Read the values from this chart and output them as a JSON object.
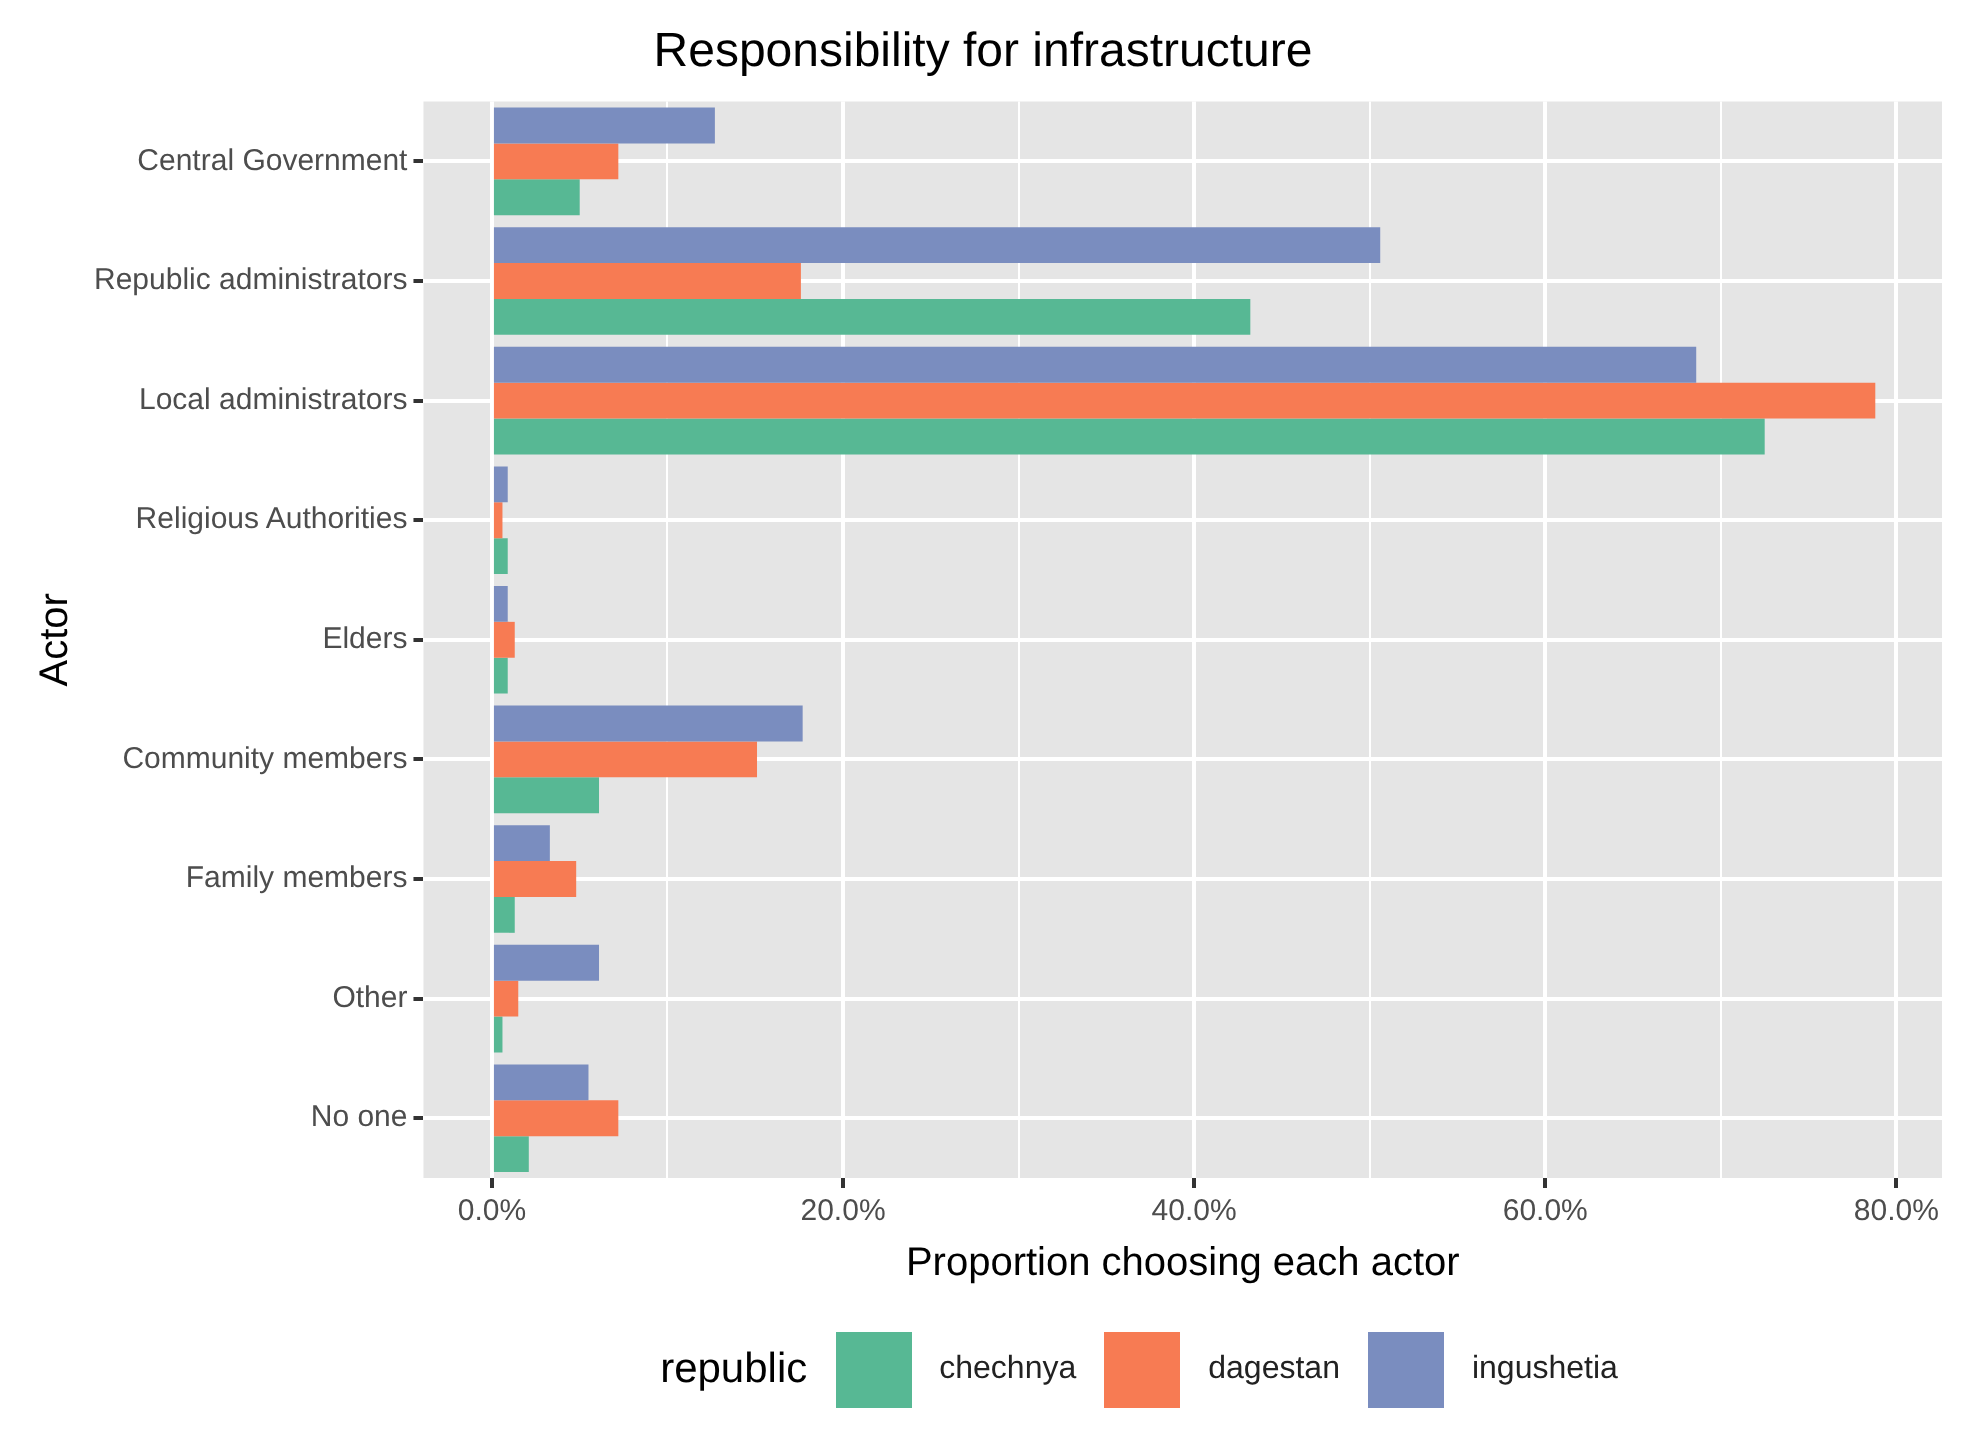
{
  "chart_data": {
    "type": "bar",
    "orientation": "horizontal",
    "title": "Responsibility for infrastructure",
    "xlabel": "Proportion choosing each actor",
    "ylabel": "Actor",
    "legend_title": "republic",
    "legend": "bottom",
    "grid": true,
    "categories": [
      "Central Government",
      "Republic administrators",
      "Local administrators",
      "Religious Authorities",
      "Elders",
      "Community members",
      "Family members",
      "Other",
      "No one"
    ],
    "series": [
      {
        "name": "chechnya",
        "color": "#57b894",
        "values": [
          5.0,
          43.2,
          72.5,
          0.9,
          0.9,
          6.1,
          1.3,
          0.6,
          2.1
        ]
      },
      {
        "name": "dagestan",
        "color": "#f77b53",
        "values": [
          7.2,
          17.6,
          78.8,
          0.6,
          1.3,
          15.1,
          4.8,
          1.5,
          7.2
        ]
      },
      {
        "name": "ingushetia",
        "color": "#7a8dbf",
        "values": [
          12.7,
          50.6,
          68.6,
          0.9,
          0.9,
          17.7,
          3.3,
          6.1,
          5.5
        ]
      }
    ],
    "xlim": [
      -3.9,
      82.6
    ],
    "xticks": [
      {
        "value": 0,
        "label": "0.0%"
      },
      {
        "value": 10,
        "label": null
      },
      {
        "value": 20,
        "label": "20.0%"
      },
      {
        "value": 30,
        "label": null
      },
      {
        "value": 40,
        "label": "40.0%"
      },
      {
        "value": 50,
        "label": null
      },
      {
        "value": 60,
        "label": "60.0%"
      },
      {
        "value": 70,
        "label": null
      },
      {
        "value": 80,
        "label": "80.0%"
      }
    ]
  }
}
